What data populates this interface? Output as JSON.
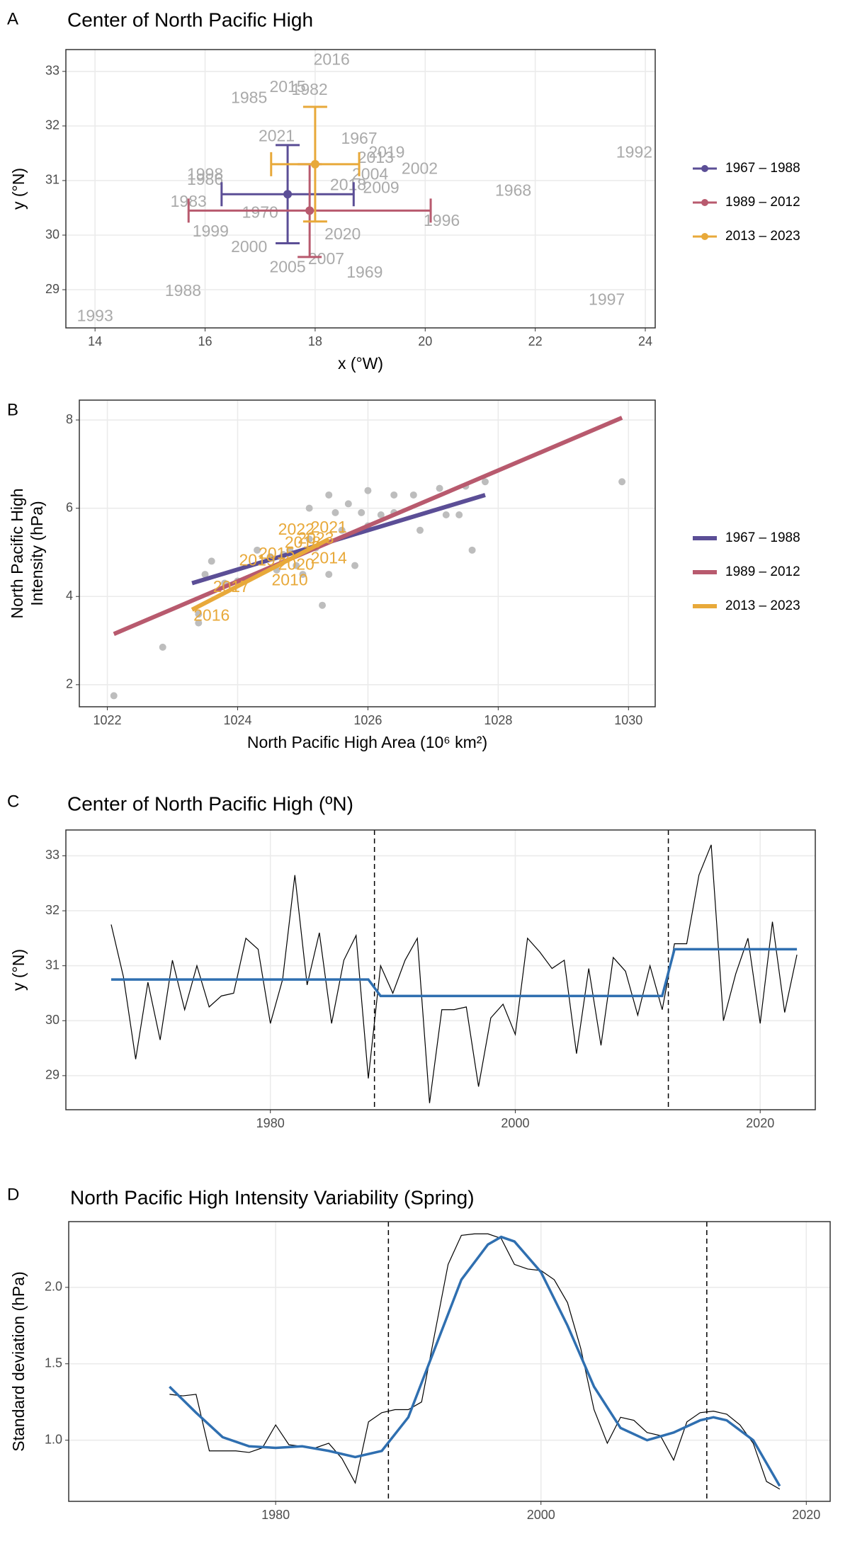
{
  "chart_data": [
    {
      "type": "scatter",
      "panel": "A",
      "title": "Center of North Pacific High",
      "x_label": "x (°W)",
      "y_label": "y (°N)",
      "xlim": [
        13.47,
        24.18
      ],
      "ylim": [
        28.3,
        33.4
      ],
      "xticks": [
        14,
        16,
        18,
        20,
        22,
        24
      ],
      "yticks": [
        29,
        30,
        31,
        32,
        33
      ],
      "grid": true,
      "legend_position": "right",
      "labels": {
        "color": "#aaaaaa",
        "text": [
          "2016",
          "2015",
          "1982",
          "1985",
          "1992",
          "2002",
          "1968",
          "1967",
          "2019",
          "2021",
          "2009",
          "2018",
          "2004",
          "2013",
          "1983",
          "1996",
          "2000",
          "2020",
          "2005",
          "1969",
          "2007",
          "1988",
          "1993",
          "1997",
          "1986",
          "1970",
          "1999",
          "1998"
        ],
        "x": [
          18.3,
          17.5,
          17.9,
          16.8,
          23.8,
          19.9,
          21.6,
          18.8,
          19.3,
          17.3,
          19.2,
          18.6,
          19.0,
          19.1,
          15.7,
          20.3,
          16.8,
          18.5,
          17.5,
          18.9,
          18.2,
          15.6,
          14.0,
          23.3,
          16.0,
          17.0,
          16.1,
          16.0
        ],
        "y": [
          33.2,
          32.7,
          32.65,
          32.5,
          31.5,
          31.2,
          30.8,
          31.75,
          31.5,
          31.8,
          30.85,
          30.9,
          31.1,
          31.4,
          30.6,
          30.25,
          29.77,
          30.0,
          29.4,
          29.3,
          29.55,
          28.96,
          28.5,
          28.8,
          31.0,
          30.4,
          30.05,
          31.1
        ]
      },
      "series": [
        {
          "name": "1967 – 1988",
          "color": "#5b4e96",
          "x": 17.5,
          "y": 30.75,
          "xerr": [
            16.3,
            18.7
          ],
          "yerr": [
            29.85,
            31.65
          ]
        },
        {
          "name": "1989 – 2012",
          "color": "#b85a6e",
          "x": 17.9,
          "y": 30.45,
          "xerr": [
            15.7,
            20.1
          ],
          "yerr": [
            29.6,
            31.3
          ]
        },
        {
          "name": "2013 – 2023",
          "color": "#e8a93a",
          "x": 18.0,
          "y": 31.3,
          "xerr": [
            17.2,
            18.8
          ],
          "yerr": [
            30.25,
            32.35
          ]
        }
      ]
    },
    {
      "type": "scatter",
      "panel": "B",
      "x_label": "North Pacific High Area  (10⁶ km²)",
      "y_label_lines": [
        "North Pacific High",
        "Intensity (hPa)"
      ],
      "xlim": [
        1021.57,
        1030.41
      ],
      "ylim": [
        1.5,
        8.45
      ],
      "xticks": [
        1022,
        1024,
        1026,
        1028,
        1030
      ],
      "yticks": [
        2,
        4,
        6,
        8
      ],
      "grid": true,
      "legend_position": "right",
      "points": {
        "color": "#bdbdbd",
        "x": [
          1022.1,
          1022.85,
          1023.4,
          1023.4,
          1023.5,
          1023.6,
          1023.8,
          1024,
          1024.3,
          1024.5,
          1024.7,
          1024.8,
          1024.9,
          1025,
          1025.1,
          1025.2,
          1025.3,
          1025.4,
          1025.4,
          1025.5,
          1025.6,
          1025.7,
          1025.8,
          1025.9,
          1026,
          1026,
          1026.2,
          1026.4,
          1026.4,
          1026.7,
          1026.8,
          1027.1,
          1027.2,
          1027.4,
          1027.5,
          1027.6,
          1027.8,
          1029.9,
          1024.6,
          1025.1
        ],
        "y": [
          1.75,
          2.85,
          3.4,
          3.6,
          4.5,
          4.8,
          4.3,
          4.35,
          5.05,
          4.9,
          4.95,
          5.05,
          4.7,
          4.5,
          6.0,
          5.1,
          3.8,
          4.5,
          6.3,
          5.9,
          5.5,
          6.1,
          4.7,
          5.9,
          6.4,
          5.6,
          5.85,
          6.3,
          5.9,
          6.3,
          5.5,
          6.45,
          5.85,
          5.85,
          6.5,
          5.05,
          6.6,
          6.6,
          4.6,
          5.3
        ]
      },
      "series": [
        {
          "name": "1967 – 1988",
          "color": "#5b4e96",
          "x": [
            1023.3,
            1027.8
          ],
          "y": [
            4.3,
            6.3
          ]
        },
        {
          "name": "1989 – 2012",
          "color": "#b85a6e",
          "x": [
            1022.1,
            1029.9
          ],
          "y": [
            3.15,
            8.05
          ]
        },
        {
          "name": "2013 – 2023",
          "color": "#e8a93a",
          "x": [
            1023.3,
            1025.4
          ],
          "y": [
            3.7,
            5.3
          ]
        }
      ],
      "labels": {
        "color": "#e8a93a",
        "text": [
          "2016",
          "2017",
          "2019",
          "2010",
          "2014",
          "2022",
          "2021",
          "2018",
          "2020",
          "2015",
          "2023"
        ],
        "x": [
          1023.6,
          1023.9,
          1024.3,
          1024.8,
          1025.4,
          1024.9,
          1025.4,
          1025.0,
          1024.9,
          1024.6,
          1025.2
        ],
        "y": [
          3.55,
          4.2,
          4.8,
          4.35,
          4.85,
          5.5,
          5.55,
          5.2,
          4.7,
          4.95,
          5.3
        ]
      }
    },
    {
      "type": "line",
      "panel": "C",
      "title": "Center of North Pacific High (ºN)",
      "y_label": "y (°N)",
      "xlim": [
        1963.3,
        2024.5
      ],
      "ylim": [
        28.38,
        33.47
      ],
      "xticks": [
        1980,
        2000,
        2020
      ],
      "yticks": [
        29,
        30,
        31,
        32,
        33
      ],
      "grid": true,
      "x": [
        1967,
        1968,
        1969,
        1970,
        1971,
        1972,
        1973,
        1974,
        1975,
        1976,
        1977,
        1978,
        1979,
        1980,
        1981,
        1982,
        1983,
        1984,
        1985,
        1986,
        1987,
        1988,
        1989,
        1990,
        1991,
        1992,
        1993,
        1994,
        1995,
        1996,
        1997,
        1998,
        1999,
        2000,
        2001,
        2002,
        2003,
        2004,
        2005,
        2006,
        2007,
        2008,
        2009,
        2010,
        2011,
        2012,
        2013,
        2014,
        2015,
        2016,
        2017,
        2018,
        2019,
        2020,
        2021,
        2022,
        2023
      ],
      "series": [
        {
          "color": "#000000",
          "values": [
            31.75,
            30.8,
            29.3,
            30.7,
            29.65,
            31.1,
            30.2,
            31.0,
            30.25,
            30.45,
            30.5,
            31.5,
            31.3,
            29.95,
            30.75,
            32.65,
            30.65,
            31.6,
            29.95,
            31.1,
            31.55,
            28.95,
            31.0,
            30.5,
            31.1,
            31.5,
            28.5,
            30.2,
            30.2,
            30.25,
            28.8,
            30.05,
            30.3,
            29.75,
            31.5,
            31.25,
            30.95,
            31.1,
            29.4,
            30.95,
            29.55,
            31.15,
            30.9,
            30.1,
            31.0,
            30.2,
            31.4,
            31.4,
            32.65,
            33.2,
            30.0,
            30.85,
            31.5,
            29.95,
            31.8,
            30.15,
            31.2
          ]
        },
        {
          "color": "#2f6fb0",
          "values": [
            30.75,
            30.75,
            30.75,
            30.75,
            30.75,
            30.75,
            30.75,
            30.75,
            30.75,
            30.75,
            30.75,
            30.75,
            30.75,
            30.75,
            30.75,
            30.75,
            30.75,
            30.75,
            30.75,
            30.75,
            30.75,
            30.75,
            30.45,
            30.45,
            30.45,
            30.45,
            30.45,
            30.45,
            30.45,
            30.45,
            30.45,
            30.45,
            30.45,
            30.45,
            30.45,
            30.45,
            30.45,
            30.45,
            30.45,
            30.45,
            30.45,
            30.45,
            30.45,
            30.45,
            30.45,
            30.45,
            31.3,
            31.3,
            31.3,
            31.3,
            31.3,
            31.3,
            31.3,
            31.3,
            31.3,
            31.3,
            31.3
          ]
        }
      ],
      "vlines": [
        1988.5,
        2012.5
      ]
    },
    {
      "type": "line",
      "panel": "D",
      "title": "North Pacific High Intensity Variability (Spring)",
      "y_label": "Standard deviation (hPa)",
      "xlim": [
        1964.4,
        2021.8
      ],
      "ylim": [
        0.6,
        2.43
      ],
      "xticks": [
        1980,
        2000,
        2020
      ],
      "yticks": [
        {
          "value": 1,
          "label": "1.0"
        },
        1.5,
        {
          "value": 2,
          "label": "2.0"
        }
      ],
      "grid": true,
      "series": [
        {
          "color": "#000000",
          "x": [
            1972,
            1973,
            1974,
            1975,
            1976,
            1977,
            1978,
            1979,
            1980,
            1981,
            1982,
            1983,
            1984,
            1985,
            1986,
            1987,
            1988,
            1989,
            1990,
            1991,
            1992,
            1993,
            1994,
            1995,
            1996,
            1997,
            1998,
            1999,
            2000,
            2001,
            2002,
            2003,
            2004,
            2005,
            2006,
            2007,
            2008,
            2009,
            2010,
            2011,
            2012,
            2013,
            2014,
            2015,
            2016,
            2017,
            2018
          ],
          "values": [
            1.3,
            1.29,
            1.3,
            0.93,
            0.93,
            0.93,
            0.92,
            0.95,
            1.1,
            0.97,
            0.96,
            0.95,
            0.98,
            0.88,
            0.72,
            1.12,
            1.18,
            1.2,
            1.2,
            1.25,
            1.7,
            2.15,
            2.34,
            2.35,
            2.35,
            2.32,
            2.15,
            2.12,
            2.11,
            2.05,
            1.9,
            1.6,
            1.2,
            0.98,
            1.15,
            1.13,
            1.05,
            1.03,
            0.87,
            1.12,
            1.18,
            1.19,
            1.17,
            1.1,
            0.98,
            0.73,
            0.68
          ]
        },
        {
          "color": "#2f6fb0",
          "x": [
            1972,
            1974,
            1976,
            1978,
            1980,
            1982,
            1984,
            1986,
            1988,
            1990,
            1992,
            1994,
            1996,
            1997,
            1998,
            2000,
            2002,
            2004,
            2006,
            2008,
            2010,
            2012,
            2013,
            2014,
            2016,
            2018
          ],
          "values": [
            1.35,
            1.18,
            1.02,
            0.96,
            0.95,
            0.96,
            0.93,
            0.89,
            0.93,
            1.15,
            1.6,
            2.05,
            2.28,
            2.33,
            2.3,
            2.1,
            1.75,
            1.35,
            1.08,
            1.0,
            1.05,
            1.13,
            1.15,
            1.13,
            1.0,
            0.7
          ]
        }
      ],
      "vlines": [
        1988.5,
        2012.5
      ]
    }
  ]
}
